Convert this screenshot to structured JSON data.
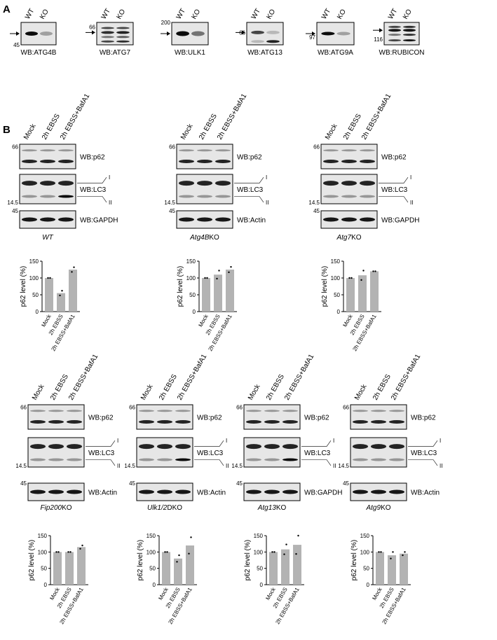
{
  "panel_a": {
    "label": "A",
    "blots": [
      {
        "lanes": [
          "WT",
          "KO"
        ],
        "marker": "45",
        "label": "WB:ATG4B"
      },
      {
        "lanes": [
          "WT",
          "KO"
        ],
        "marker": "66",
        "label": "WB:ATG7"
      },
      {
        "lanes": [
          "WT",
          "KO"
        ],
        "marker": "200",
        "label": "WB:ULK1"
      },
      {
        "lanes": [
          "WT",
          "KO"
        ],
        "marker": "66",
        "label": "WB:ATG13"
      },
      {
        "lanes": [
          "WT",
          "KO"
        ],
        "marker": "97",
        "label": "WB:ATG9A"
      },
      {
        "lanes": [
          "WT",
          "KO"
        ],
        "marker": "116",
        "label": "WB:RUBICON"
      }
    ]
  },
  "panel_b": {
    "label": "B",
    "groups": [
      {
        "lanes": [
          "Mock",
          "2h EBSS",
          "2h EBSS+BafA1"
        ],
        "blots": [
          {
            "label": "WB:p62",
            "marker": "66"
          },
          {
            "label": "WB:LC3",
            "marker": "14.5",
            "bands": [
              "I",
              "II"
            ]
          },
          {
            "label": "WB:GAPDH",
            "marker": "45"
          }
        ],
        "genotype": [
          "WT",
          ""
        ]
      },
      {
        "lanes": [
          "Mock",
          "2h EBSS",
          "2h EBSS+BafA1"
        ],
        "blots": [
          {
            "label": "WB:p62",
            "marker": "66"
          },
          {
            "label": "WB:LC3",
            "marker": "14.5",
            "bands": [
              "I",
              "II"
            ]
          },
          {
            "label": "WB:Actin",
            "marker": "45"
          }
        ],
        "genotype": [
          "Atg4B",
          "KO"
        ]
      },
      {
        "lanes": [
          "Mock",
          "2h EBSS",
          "2h EBSS+BafA1"
        ],
        "blots": [
          {
            "label": "WB:p62",
            "marker": "66"
          },
          {
            "label": "WB:LC3",
            "marker": "14.5",
            "bands": [
              "I",
              "II"
            ]
          },
          {
            "label": "WB:GAPDH",
            "marker": "45"
          }
        ],
        "genotype": [
          "Atg7",
          "KO"
        ]
      },
      {
        "lanes": [
          "Mock",
          "2h EBSS",
          "2h EBSS+BafA1"
        ],
        "blots": [
          {
            "label": "WB:p62",
            "marker": "66"
          },
          {
            "label": "WB:LC3",
            "marker": "14.5",
            "bands": [
              "I",
              "II"
            ]
          },
          {
            "label": "WB:Actin",
            "marker": "45"
          }
        ],
        "genotype": [
          "Fip200",
          "KO"
        ]
      },
      {
        "lanes": [
          "Mock",
          "2h EBSS",
          "2h EBSS+BafA1"
        ],
        "blots": [
          {
            "label": "WB:p62",
            "marker": "66"
          },
          {
            "label": "WB:LC3",
            "marker": "14.5",
            "bands": [
              "I",
              "II"
            ]
          },
          {
            "label": "WB:Actin",
            "marker": "45"
          }
        ],
        "genotype": [
          "Ulk1/2",
          "DKO"
        ]
      },
      {
        "lanes": [
          "Mock",
          "2h EBSS",
          "2h EBSS+BafA1"
        ],
        "blots": [
          {
            "label": "WB:p62",
            "marker": "66"
          },
          {
            "label": "WB:LC3",
            "marker": "14.5",
            "bands": [
              "I",
              "II"
            ]
          },
          {
            "label": "WB:GAPDH",
            "marker": "45"
          }
        ],
        "genotype": [
          "Atg13",
          "KO"
        ]
      },
      {
        "lanes": [
          "Mock",
          "2h EBSS",
          "2h EBSS+BafA1"
        ],
        "blots": [
          {
            "label": "WB:p62",
            "marker": "66"
          },
          {
            "label": "WB:LC3",
            "marker": "14.5",
            "bands": [
              "I",
              "II"
            ]
          },
          {
            "label": "WB:Actin",
            "marker": "45"
          }
        ],
        "genotype": [
          "Atg9",
          "KO"
        ]
      }
    ]
  },
  "chart_data": [
    {
      "type": "bar",
      "ylabel": "p62 level (%)",
      "categories": [
        "Mock",
        "2h EBSS",
        "2h EBSS+BafA1"
      ],
      "values": [
        100,
        55,
        125
      ],
      "points": [
        [
          100,
          100
        ],
        [
          48,
          62
        ],
        [
          118,
          132
        ]
      ],
      "color": "#b3b3b3",
      "ylim": [
        0,
        150
      ],
      "yticks": [
        0,
        50,
        100,
        150
      ]
    },
    {
      "type": "bar",
      "ylabel": "p62 level (%)",
      "categories": [
        "Mock",
        "2h EBSS",
        "2h EBSS+BafA1"
      ],
      "values": [
        100,
        110,
        125
      ],
      "points": [
        [
          100,
          100
        ],
        [
          98,
          122
        ],
        [
          117,
          133
        ]
      ],
      "color": "#b3b3b3",
      "ylim": [
        0,
        150
      ],
      "yticks": [
        0,
        50,
        100,
        150
      ]
    },
    {
      "type": "bar",
      "ylabel": "p62 level (%)",
      "categories": [
        "Mock",
        "2h EBSS",
        "2h EBSS+BafA1"
      ],
      "values": [
        100,
        108,
        120
      ],
      "points": [
        [
          100,
          100
        ],
        [
          94,
          122
        ],
        [
          120,
          120
        ]
      ],
      "color": "#b3b3b3",
      "ylim": [
        0,
        150
      ],
      "yticks": [
        0,
        50,
        100,
        150
      ]
    },
    {
      "type": "bar",
      "ylabel": "p62 level (%)",
      "categories": [
        "Mock",
        "2h EBSS",
        "2h EBSS+BafA1"
      ],
      "values": [
        100,
        100,
        115
      ],
      "points": [
        [
          100,
          100
        ],
        [
          100,
          100
        ],
        [
          110,
          120
        ]
      ],
      "color": "#b3b3b3",
      "ylim": [
        0,
        150
      ],
      "yticks": [
        0,
        50,
        100,
        150
      ]
    },
    {
      "type": "bar",
      "ylabel": "p62 level (%)",
      "categories": [
        "Mock",
        "2h EBSS",
        "2h EBSS+BafA1"
      ],
      "values": [
        100,
        80,
        120
      ],
      "points": [
        [
          100,
          100
        ],
        [
          70,
          90
        ],
        [
          95,
          145
        ]
      ],
      "color": "#b3b3b3",
      "ylim": [
        0,
        150
      ],
      "yticks": [
        0,
        50,
        100,
        150
      ]
    },
    {
      "type": "bar",
      "ylabel": "p62 level (%)",
      "categories": [
        "Mock",
        "2h EBSS",
        "2h EBSS+BafA1"
      ],
      "values": [
        100,
        108,
        122
      ],
      "points": [
        [
          100,
          100
        ],
        [
          93,
          123
        ],
        [
          94,
          150
        ]
      ],
      "color": "#b3b3b3",
      "ylim": [
        0,
        150
      ],
      "yticks": [
        0,
        50,
        100,
        150
      ]
    },
    {
      "type": "bar",
      "ylabel": "p62 level (%)",
      "categories": [
        "Mock",
        "2h EBSS",
        "2h EBSS+BafA1"
      ],
      "values": [
        100,
        90,
        95
      ],
      "points": [
        [
          100,
          100
        ],
        [
          80,
          100
        ],
        [
          90,
          100
        ]
      ],
      "color": "#b3b3b3",
      "ylim": [
        0,
        150
      ],
      "yticks": [
        0,
        50,
        100,
        150
      ]
    }
  ]
}
